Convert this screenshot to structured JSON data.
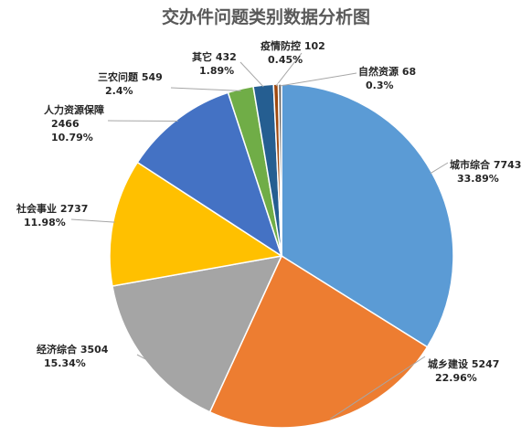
{
  "chart_data": {
    "type": "pie",
    "title": "交办件问题类别数据分析图",
    "slices": [
      {
        "name": "城市综合",
        "value": 7743,
        "percent": "33.89%",
        "color": "#5b9bd5"
      },
      {
        "name": "城乡建设",
        "value": 5247,
        "percent": "22.96%",
        "color": "#ed7d31"
      },
      {
        "name": "经济综合",
        "value": 3504,
        "percent": "15.34%",
        "color": "#a5a5a5"
      },
      {
        "name": "社会事业",
        "value": 2737,
        "percent": "11.98%",
        "color": "#ffc000"
      },
      {
        "name": "人力资源保障",
        "value": 2466,
        "percent": "10.79%",
        "color": "#4472c4"
      },
      {
        "name": "三农问题",
        "value": 549,
        "percent": "2.4%",
        "color": "#70ad47"
      },
      {
        "name": "其它",
        "value": 432,
        "percent": "1.89%",
        "color": "#255e91"
      },
      {
        "name": "疫情防控",
        "value": 102,
        "percent": "0.45%",
        "color": "#9e480e"
      },
      {
        "name": "自然资源",
        "value": 68,
        "percent": "0.3%",
        "color": "#636363"
      }
    ]
  }
}
